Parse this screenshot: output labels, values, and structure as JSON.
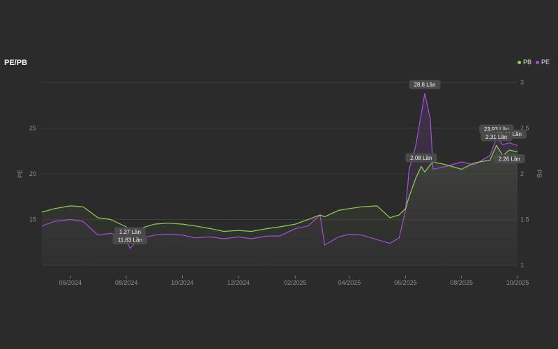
{
  "header": {
    "title": "PE/PB"
  },
  "legend": [
    {
      "name": "PB",
      "color": "#8fd14f"
    },
    {
      "name": "PE",
      "color": "#a64dd9"
    }
  ],
  "chart_data": {
    "type": "line",
    "title": "PE/PB",
    "x_range": [
      "2024-05-01",
      "2025-10-01"
    ],
    "x_ticks": [
      "06/2024",
      "08/2024",
      "10/2024",
      "12/2024",
      "02/2025",
      "04/2025",
      "06/2025",
      "08/2025",
      "10/2025"
    ],
    "y_left": {
      "label": "PE",
      "ticks": [
        "15",
        "20",
        "25"
      ],
      "range": [
        10,
        30
      ]
    },
    "y_right": {
      "label": "PB",
      "ticks": [
        "1",
        "1.5",
        "2",
        "2.5",
        "3"
      ],
      "range": [
        1,
        3
      ]
    },
    "grid": true,
    "legend_position": "top-right",
    "series": [
      {
        "name": "PE",
        "axis": "left",
        "color": "#a64dd9",
        "x": [
          "2024-05-01",
          "2024-05-15",
          "2024-06-01",
          "2024-06-15",
          "2024-07-01",
          "2024-07-15",
          "2024-08-01",
          "2024-08-05",
          "2024-08-15",
          "2024-09-01",
          "2024-09-15",
          "2024-10-01",
          "2024-10-15",
          "2024-11-01",
          "2024-11-15",
          "2024-12-01",
          "2024-12-15",
          "2025-01-01",
          "2025-01-15",
          "2025-02-01",
          "2025-02-15",
          "2025-02-28",
          "2025-03-05",
          "2025-03-20",
          "2025-04-01",
          "2025-04-15",
          "2025-05-01",
          "2025-05-15",
          "2025-05-25",
          "2025-06-01",
          "2025-06-05",
          "2025-06-12",
          "2025-06-18",
          "2025-06-22",
          "2025-06-28",
          "2025-07-01",
          "2025-07-15",
          "2025-08-01",
          "2025-08-15",
          "2025-09-01",
          "2025-09-08",
          "2025-09-15",
          "2025-09-22",
          "2025-10-01"
        ],
        "values": [
          14.3,
          14.8,
          15.0,
          14.8,
          13.3,
          13.5,
          12.8,
          11.83,
          12.9,
          13.3,
          13.4,
          13.3,
          13.0,
          13.1,
          12.9,
          13.1,
          12.9,
          13.2,
          13.2,
          14.0,
          14.3,
          15.5,
          12.2,
          13.1,
          13.4,
          13.3,
          12.8,
          12.4,
          13.0,
          16.0,
          20.5,
          23.0,
          26.5,
          28.8,
          26.0,
          20.5,
          20.8,
          21.3,
          21.0,
          22.0,
          23.93,
          23.2,
          23.38,
          23.1
        ]
      },
      {
        "name": "PB",
        "axis": "right",
        "color": "#8fd14f",
        "x": [
          "2024-05-01",
          "2024-05-15",
          "2024-06-01",
          "2024-06-15",
          "2024-07-01",
          "2024-07-15",
          "2024-08-01",
          "2024-08-05",
          "2024-08-15",
          "2024-09-01",
          "2024-09-15",
          "2024-10-01",
          "2024-10-15",
          "2024-11-01",
          "2024-11-15",
          "2024-12-01",
          "2024-12-15",
          "2025-01-01",
          "2025-01-15",
          "2025-02-01",
          "2025-02-15",
          "2025-02-28",
          "2025-03-05",
          "2025-03-20",
          "2025-04-01",
          "2025-04-15",
          "2025-05-01",
          "2025-05-15",
          "2025-05-25",
          "2025-06-01",
          "2025-06-05",
          "2025-06-12",
          "2025-06-18",
          "2025-06-22",
          "2025-06-28",
          "2025-07-01",
          "2025-07-15",
          "2025-08-01",
          "2025-08-15",
          "2025-09-01",
          "2025-09-08",
          "2025-09-15",
          "2025-09-22",
          "2025-10-01"
        ],
        "values": [
          1.58,
          1.62,
          1.65,
          1.64,
          1.52,
          1.5,
          1.42,
          1.27,
          1.4,
          1.45,
          1.46,
          1.45,
          1.43,
          1.4,
          1.37,
          1.38,
          1.37,
          1.4,
          1.42,
          1.45,
          1.5,
          1.55,
          1.53,
          1.6,
          1.62,
          1.64,
          1.65,
          1.52,
          1.55,
          1.62,
          1.75,
          1.95,
          2.08,
          2.02,
          2.1,
          2.13,
          2.1,
          2.05,
          2.12,
          2.15,
          2.31,
          2.2,
          2.26,
          2.24
        ]
      }
    ],
    "annotations": [
      {
        "series": "PE",
        "x": "2025-06-22",
        "value": 28.8,
        "text": "28.8 Lần",
        "placement": "above"
      },
      {
        "series": "PE",
        "x": "2025-09-08",
        "value": 23.93,
        "text": "23.93 Lần",
        "placement": "above"
      },
      {
        "series": "PE",
        "x": "2025-09-22",
        "value": 23.38,
        "text": "23.38 Lần",
        "placement": "above"
      },
      {
        "series": "PE",
        "x": "2024-08-05",
        "value": 11.83,
        "text": "11.83 Lần",
        "placement": "above"
      },
      {
        "series": "PB",
        "x": "2025-06-18",
        "value": 2.08,
        "text": "2.08 Lần",
        "placement": "above"
      },
      {
        "series": "PB",
        "x": "2025-09-08",
        "value": 2.31,
        "text": "2.31 Lần",
        "placement": "above"
      },
      {
        "series": "PB",
        "x": "2025-09-22",
        "value": 2.26,
        "text": "2.26 Lần",
        "placement": "below"
      },
      {
        "series": "PB",
        "x": "2024-08-05",
        "value": 1.27,
        "text": "1.27 Lần",
        "placement": "above"
      }
    ]
  }
}
